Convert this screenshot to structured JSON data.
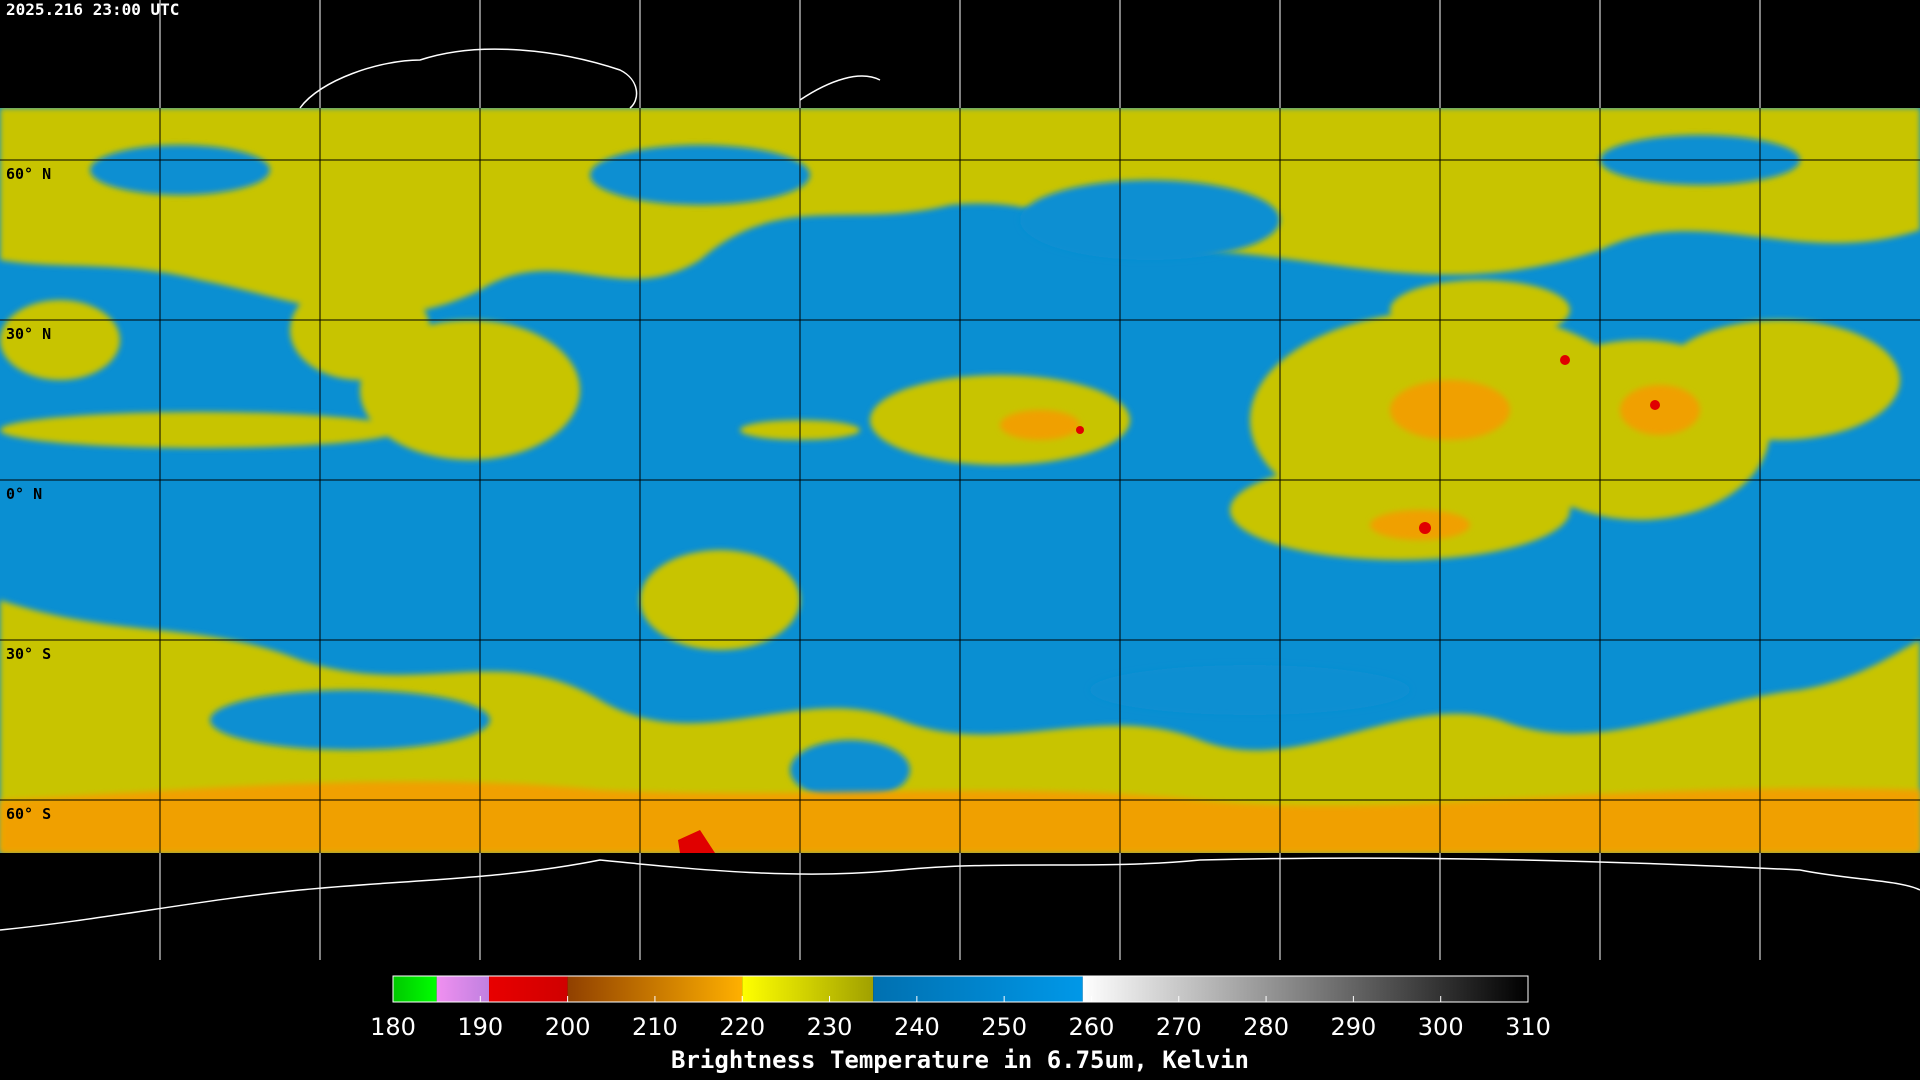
{
  "timestamp": "2025.216 23:00 UTC",
  "latitude_labels": [
    "60° N",
    "30° N",
    "0° N",
    "30° S",
    "60° S"
  ],
  "colorbar": {
    "range": [
      180,
      310
    ],
    "ticks": [
      180,
      190,
      200,
      210,
      220,
      230,
      240,
      250,
      260,
      270,
      280,
      290,
      300,
      310
    ],
    "segments": [
      {
        "from": 180,
        "to": 185,
        "colors": [
          "#00c800",
          "#00ff00"
        ]
      },
      {
        "from": 185,
        "to": 191,
        "colors": [
          "#f090f0",
          "#c080e0"
        ]
      },
      {
        "from": 191,
        "to": 200,
        "colors": [
          "#e80000",
          "#d00000"
        ]
      },
      {
        "from": 200,
        "to": 220,
        "colors": [
          "#904000",
          "#ffb000"
        ]
      },
      {
        "from": 220,
        "to": 235,
        "colors": [
          "#ffff00",
          "#a0a000"
        ]
      },
      {
        "from": 235,
        "to": 259,
        "colors": [
          "#0070b0",
          "#0098e8"
        ]
      },
      {
        "from": 259,
        "to": 310,
        "colors": [
          "#ffffff",
          "#000000"
        ]
      }
    ],
    "label": "Brightness Temperature in 6.75um, Kelvin"
  }
}
